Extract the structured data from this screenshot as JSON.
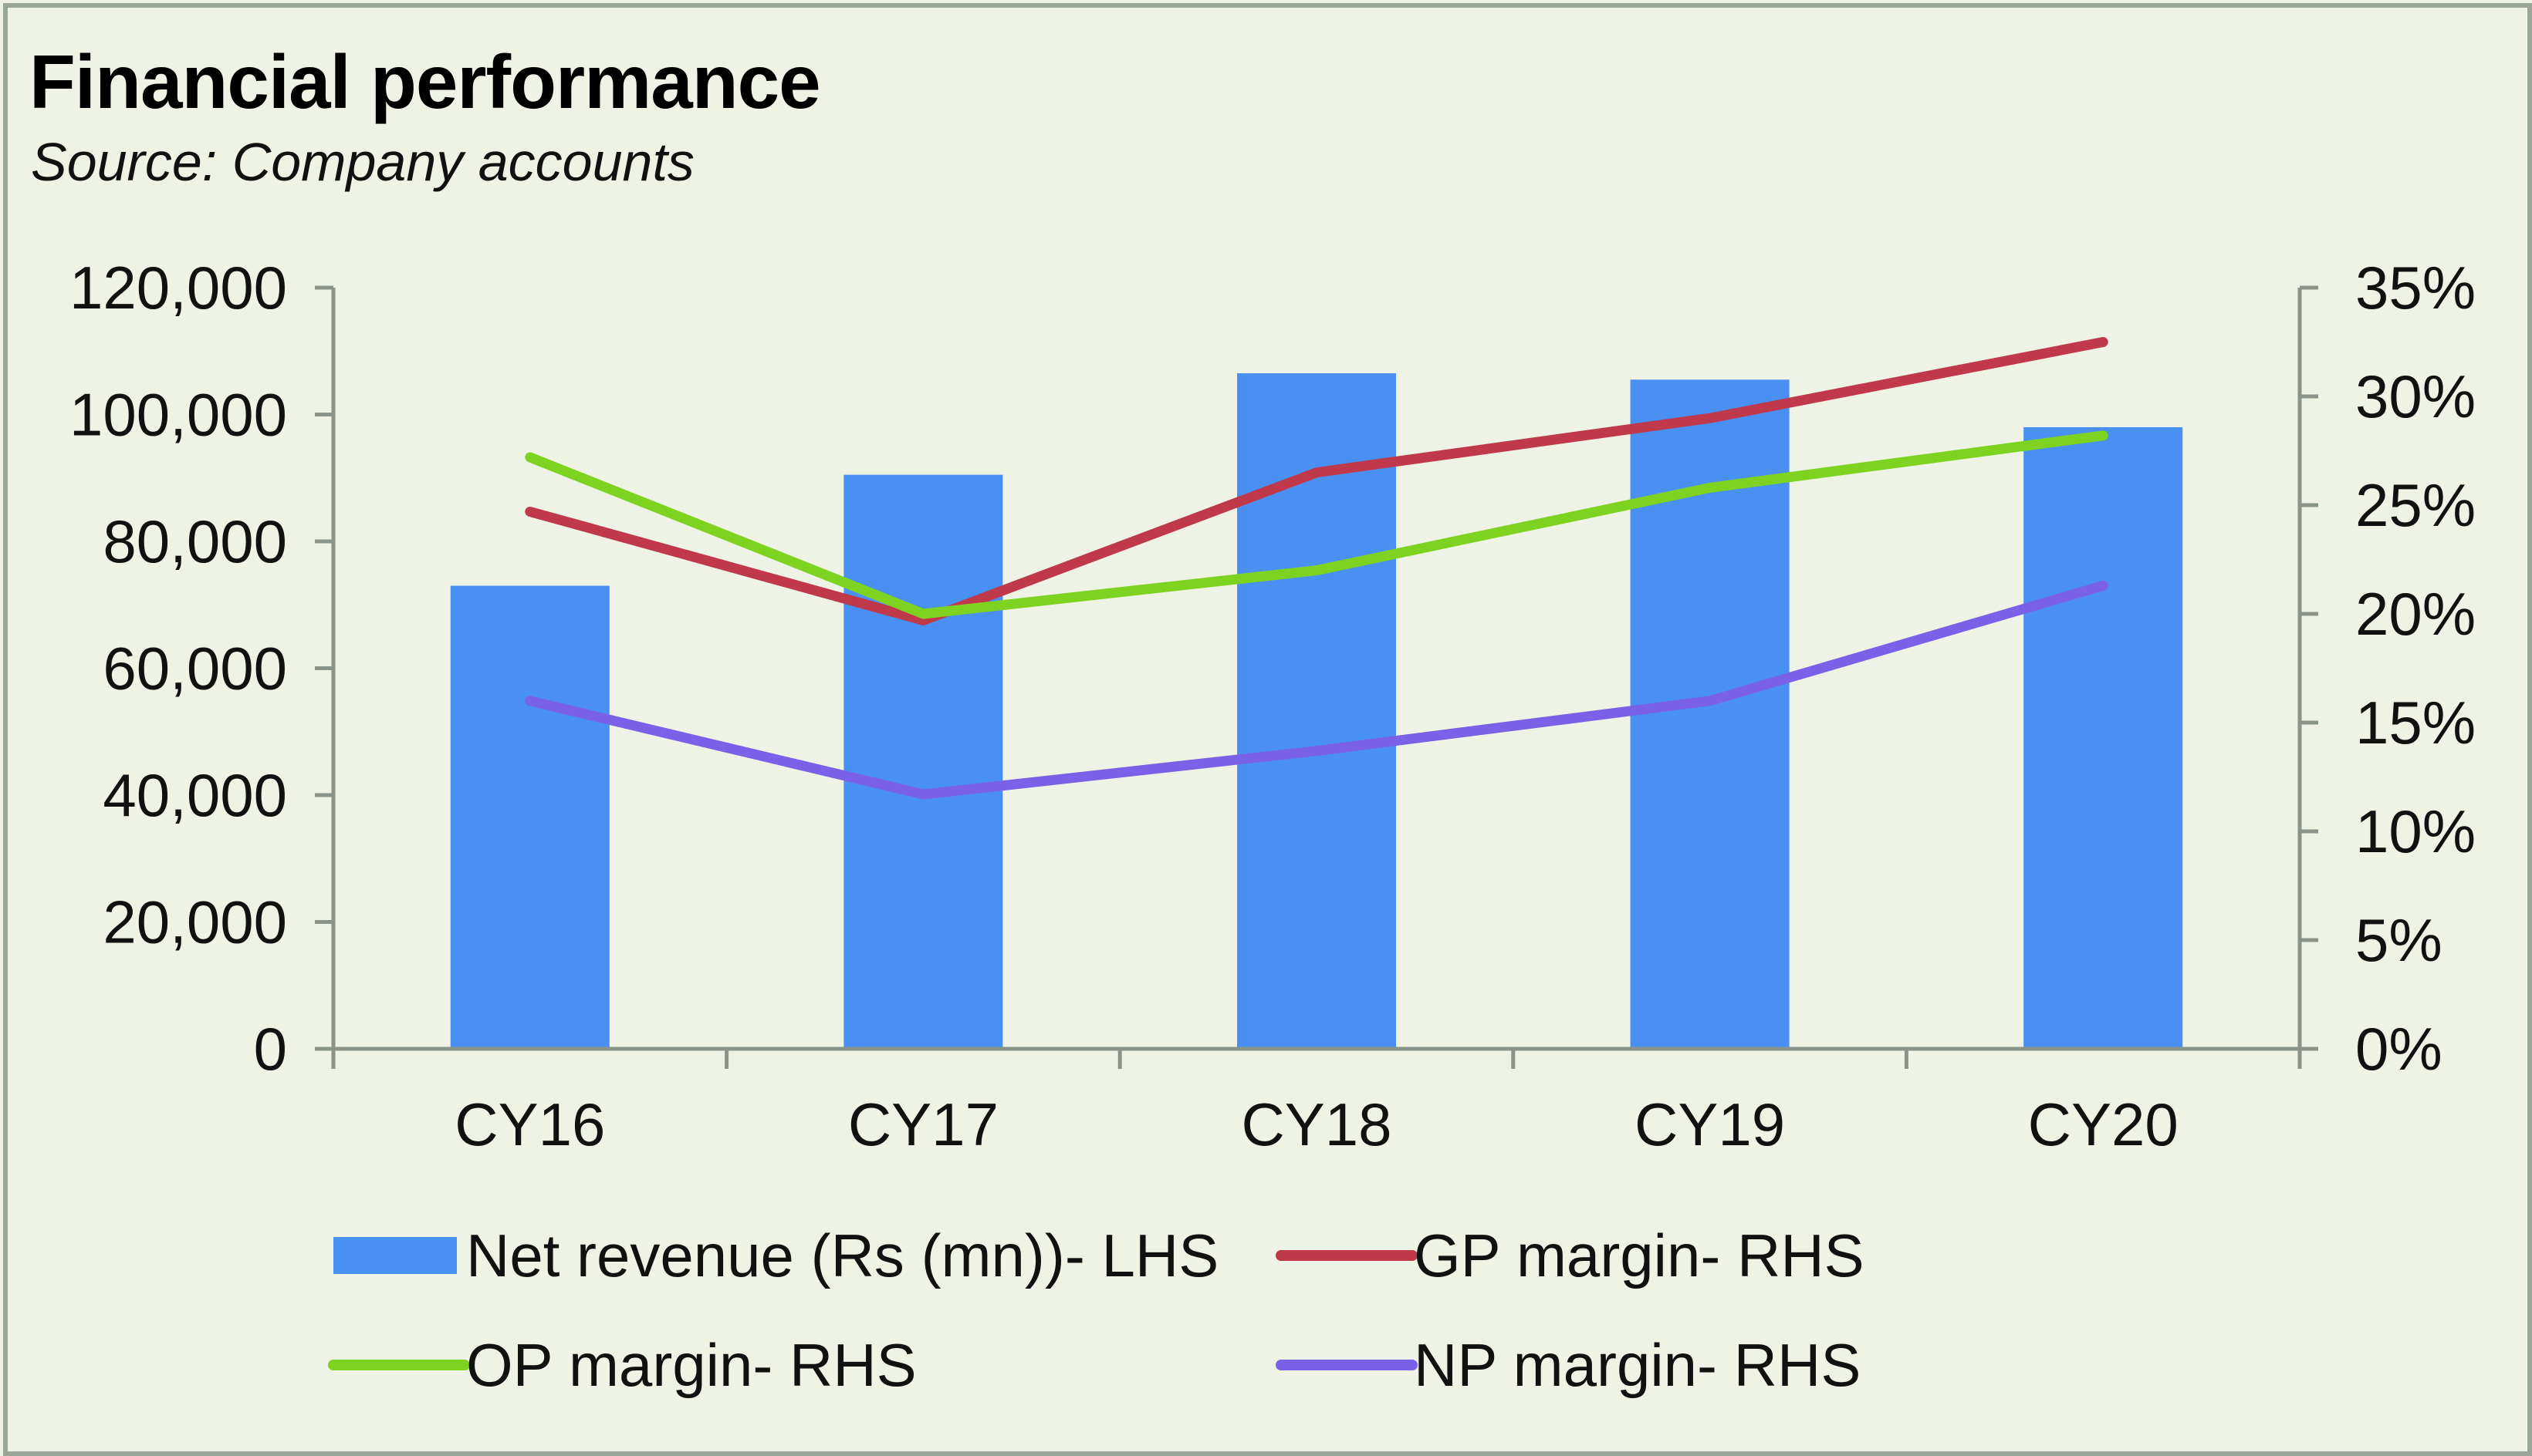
{
  "chart_data": {
    "type": "bar",
    "title": "Financial performance",
    "subtitle": "Source: Company accounts",
    "categories": [
      "CY16",
      "CY17",
      "CY18",
      "CY19",
      "CY20"
    ],
    "y_left": {
      "range": [
        0,
        120000
      ],
      "ticks": [
        0,
        20000,
        40000,
        60000,
        80000,
        100000,
        120000
      ],
      "tick_labels": [
        "0",
        "20,000",
        "40,000",
        "60,000",
        "80,000",
        "100,000",
        "120,000"
      ]
    },
    "y_right": {
      "range": [
        0,
        35
      ],
      "ticks": [
        0,
        5,
        10,
        15,
        20,
        25,
        30,
        35
      ],
      "tick_labels": [
        "0%",
        "5%",
        "10%",
        "15%",
        "20%",
        "25%",
        "30%",
        "35%"
      ]
    },
    "series": [
      {
        "name": "Net revenue (Rs (mn))- LHS",
        "kind": "bar",
        "axis": "left",
        "color": "#4a8ff2",
        "values": [
          73000,
          90500,
          106500,
          105500,
          98000
        ]
      },
      {
        "name": "GP margin- RHS",
        "kind": "line",
        "axis": "right",
        "color": "#c0394a",
        "values": [
          24.7,
          19.7,
          26.5,
          29.0,
          32.5
        ]
      },
      {
        "name": "OP margin- RHS",
        "kind": "line",
        "axis": "right",
        "color": "#7ed321",
        "values": [
          27.2,
          20.0,
          22.0,
          25.8,
          28.2
        ]
      },
      {
        "name": "NP margin- RHS",
        "kind": "line",
        "axis": "right",
        "color": "#7b61e8",
        "values": [
          16.0,
          11.7,
          13.7,
          16.0,
          21.3
        ]
      }
    ],
    "legend_position": "bottom",
    "grid": false
  }
}
